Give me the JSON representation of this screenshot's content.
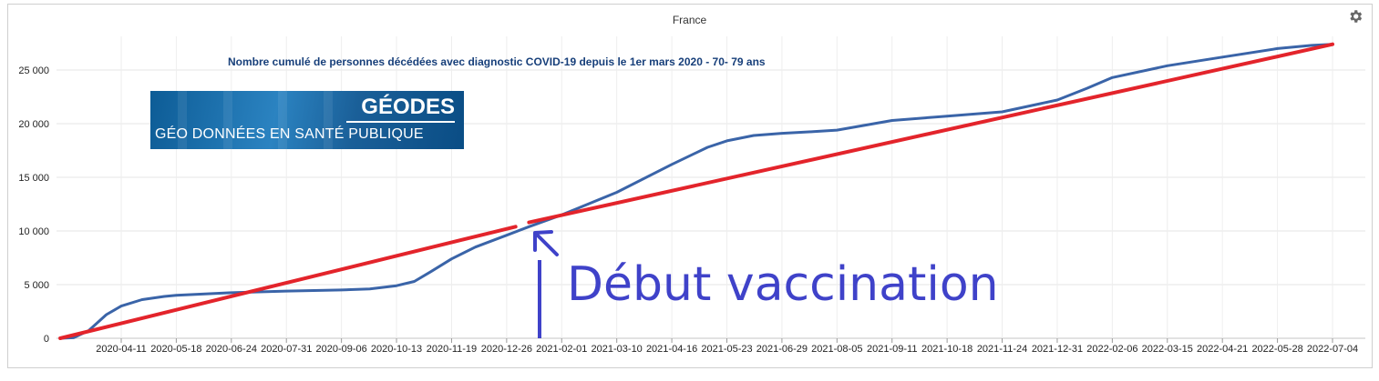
{
  "region_label": "France",
  "logo": {
    "line1": "GÉODES",
    "line2": "GÉO DONNÉES EN SANTÉ PUBLIQUE"
  },
  "annotation": "Début vaccination",
  "colors": {
    "series": "#3a64a8",
    "trend": "#e3242b",
    "annotation": "#3f42c9",
    "title": "#173f7a"
  },
  "icons": {
    "settings": "gear-icon"
  },
  "chart_data": {
    "type": "line",
    "title": "Nombre cumulé de personnes décédées avec diagnostic COVID-19 depuis le 1er mars 2020 - 70- 79 ans",
    "xlabel": "",
    "ylabel": "",
    "ylim": [
      0,
      28000
    ],
    "yticks": [
      0,
      5000,
      10000,
      15000,
      20000,
      25000
    ],
    "ytick_labels": [
      "0",
      "5 000",
      "10 000",
      "15 000",
      "20 000",
      "25 000"
    ],
    "x_tick_labels": [
      "2020-04-11",
      "2020-05-18",
      "2020-06-24",
      "2020-07-31",
      "2020-09-06",
      "2020-10-13",
      "2020-11-19",
      "2020-12-26",
      "2021-02-01",
      "2021-03-10",
      "2021-04-16",
      "2021-05-23",
      "2021-06-29",
      "2021-08-05",
      "2021-09-11",
      "2021-10-18",
      "2021-11-24",
      "2021-12-31",
      "2022-02-06",
      "2022-03-15",
      "2022-04-21",
      "2022-05-28",
      "2022-07-04"
    ],
    "grid": true,
    "series": [
      {
        "values": [
          [
            "2020-03-01",
            0
          ],
          [
            "2020-03-10",
            50
          ],
          [
            "2020-03-20",
            700
          ],
          [
            "2020-04-01",
            2200
          ],
          [
            "2020-04-11",
            3000
          ],
          [
            "2020-04-25",
            3600
          ],
          [
            "2020-05-10",
            3900
          ],
          [
            "2020-05-18",
            4000
          ],
          [
            "2020-06-24",
            4250
          ],
          [
            "2020-07-31",
            4400
          ],
          [
            "2020-09-06",
            4500
          ],
          [
            "2020-09-25",
            4600
          ],
          [
            "2020-10-13",
            4900
          ],
          [
            "2020-10-25",
            5300
          ],
          [
            "2020-11-05",
            6200
          ],
          [
            "2020-11-19",
            7400
          ],
          [
            "2020-12-05",
            8500
          ],
          [
            "2020-12-26",
            9600
          ],
          [
            "2021-01-10",
            10400
          ],
          [
            "2021-02-01",
            11500
          ],
          [
            "2021-03-10",
            13600
          ],
          [
            "2021-04-16",
            16200
          ],
          [
            "2021-05-10",
            17800
          ],
          [
            "2021-05-23",
            18400
          ],
          [
            "2021-06-10",
            18900
          ],
          [
            "2021-06-29",
            19100
          ],
          [
            "2021-07-20",
            19250
          ],
          [
            "2021-08-05",
            19400
          ],
          [
            "2021-09-11",
            20300
          ],
          [
            "2021-10-18",
            20700
          ],
          [
            "2021-11-24",
            21100
          ],
          [
            "2021-12-31",
            22200
          ],
          [
            "2022-01-20",
            23300
          ],
          [
            "2022-02-06",
            24300
          ],
          [
            "2022-03-15",
            25400
          ],
          [
            "2022-04-21",
            26200
          ],
          [
            "2022-05-28",
            27000
          ],
          [
            "2022-06-20",
            27300
          ],
          [
            "2022-07-04",
            27400
          ]
        ]
      },
      {
        "values": [
          [
            "2020-03-01",
            0
          ],
          [
            "2021-01-01",
            10400
          ]
        ]
      },
      {
        "values": [
          [
            "2021-01-10",
            10800
          ],
          [
            "2022-07-04",
            27400
          ]
        ]
      }
    ]
  }
}
